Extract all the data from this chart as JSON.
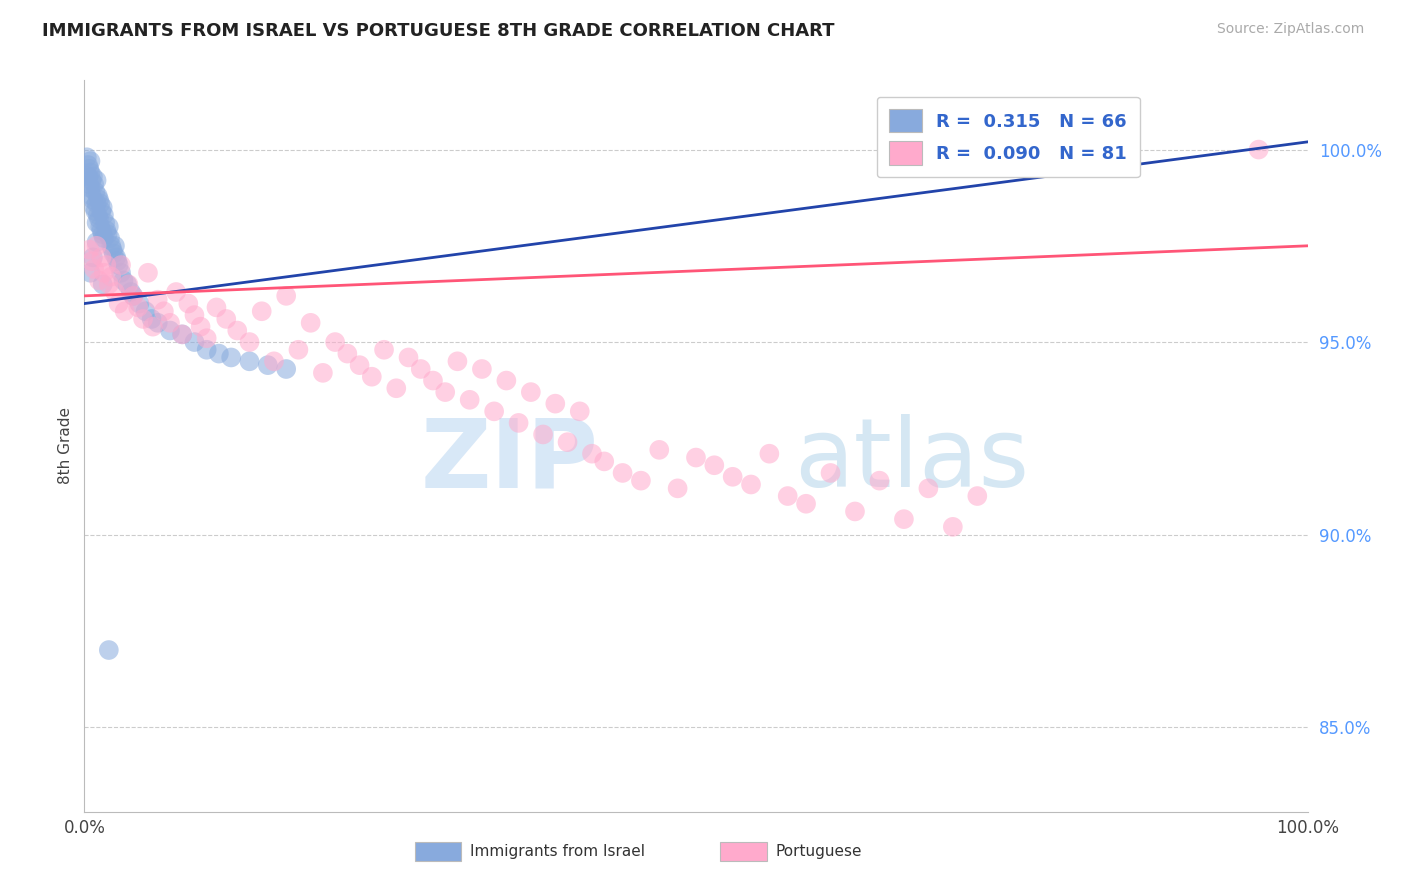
{
  "title": "IMMIGRANTS FROM ISRAEL VS PORTUGUESE 8TH GRADE CORRELATION CHART",
  "source": "Source: ZipAtlas.com",
  "ylabel": "8th Grade",
  "legend_label1": "Immigrants from Israel",
  "legend_label2": "Portuguese",
  "R1": 0.315,
  "N1": 66,
  "R2": 0.09,
  "N2": 81,
  "color_blue": "#88AADD",
  "color_pink": "#FFAACC",
  "color_line_blue": "#2244AA",
  "color_line_pink": "#FF5577",
  "ytick_labels": [
    "85.0%",
    "90.0%",
    "95.0%",
    "100.0%"
  ],
  "ytick_values": [
    0.85,
    0.9,
    0.95,
    1.0
  ],
  "xmin": 0.0,
  "xmax": 1.0,
  "ymin": 0.828,
  "ymax": 1.018,
  "watermark_zip": "ZIP",
  "watermark_atlas": "atlas",
  "blue_x": [
    0.002,
    0.003,
    0.003,
    0.004,
    0.004,
    0.005,
    0.005,
    0.005,
    0.006,
    0.006,
    0.007,
    0.007,
    0.008,
    0.008,
    0.009,
    0.009,
    0.01,
    0.01,
    0.01,
    0.011,
    0.011,
    0.012,
    0.012,
    0.013,
    0.013,
    0.014,
    0.014,
    0.015,
    0.015,
    0.016,
    0.016,
    0.017,
    0.018,
    0.019,
    0.02,
    0.021,
    0.022,
    0.023,
    0.024,
    0.025,
    0.026,
    0.027,
    0.028,
    0.03,
    0.032,
    0.035,
    0.038,
    0.04,
    0.045,
    0.05,
    0.055,
    0.06,
    0.07,
    0.08,
    0.09,
    0.1,
    0.11,
    0.12,
    0.135,
    0.15,
    0.165,
    0.005,
    0.007,
    0.01,
    0.015,
    0.02
  ],
  "blue_y": [
    0.998,
    0.996,
    0.993,
    0.995,
    0.991,
    0.997,
    0.994,
    0.99,
    0.992,
    0.988,
    0.993,
    0.987,
    0.991,
    0.985,
    0.989,
    0.984,
    0.992,
    0.986,
    0.981,
    0.988,
    0.983,
    0.987,
    0.982,
    0.986,
    0.98,
    0.984,
    0.979,
    0.985,
    0.978,
    0.983,
    0.977,
    0.981,
    0.979,
    0.978,
    0.98,
    0.977,
    0.975,
    0.974,
    0.973,
    0.975,
    0.972,
    0.971,
    0.97,
    0.968,
    0.966,
    0.965,
    0.963,
    0.962,
    0.96,
    0.958,
    0.956,
    0.955,
    0.953,
    0.952,
    0.95,
    0.948,
    0.947,
    0.946,
    0.945,
    0.944,
    0.943,
    0.968,
    0.972,
    0.976,
    0.965,
    0.87
  ],
  "pink_x": [
    0.004,
    0.006,
    0.008,
    0.01,
    0.012,
    0.014,
    0.016,
    0.018,
    0.02,
    0.022,
    0.025,
    0.028,
    0.03,
    0.033,
    0.036,
    0.04,
    0.044,
    0.048,
    0.052,
    0.056,
    0.06,
    0.065,
    0.07,
    0.075,
    0.08,
    0.085,
    0.09,
    0.095,
    0.1,
    0.108,
    0.116,
    0.125,
    0.135,
    0.145,
    0.155,
    0.165,
    0.175,
    0.185,
    0.195,
    0.205,
    0.215,
    0.225,
    0.235,
    0.245,
    0.255,
    0.265,
    0.275,
    0.285,
    0.295,
    0.305,
    0.315,
    0.325,
    0.335,
    0.345,
    0.355,
    0.365,
    0.375,
    0.385,
    0.395,
    0.405,
    0.415,
    0.425,
    0.44,
    0.455,
    0.47,
    0.485,
    0.5,
    0.515,
    0.53,
    0.545,
    0.56,
    0.575,
    0.59,
    0.61,
    0.63,
    0.65,
    0.67,
    0.69,
    0.71,
    0.73,
    0.96
  ],
  "pink_y": [
    0.974,
    0.971,
    0.969,
    0.975,
    0.966,
    0.972,
    0.968,
    0.97,
    0.965,
    0.967,
    0.963,
    0.96,
    0.97,
    0.958,
    0.965,
    0.962,
    0.959,
    0.956,
    0.968,
    0.954,
    0.961,
    0.958,
    0.955,
    0.963,
    0.952,
    0.96,
    0.957,
    0.954,
    0.951,
    0.959,
    0.956,
    0.953,
    0.95,
    0.958,
    0.945,
    0.962,
    0.948,
    0.955,
    0.942,
    0.95,
    0.947,
    0.944,
    0.941,
    0.948,
    0.938,
    0.946,
    0.943,
    0.94,
    0.937,
    0.945,
    0.935,
    0.943,
    0.932,
    0.94,
    0.929,
    0.937,
    0.926,
    0.934,
    0.924,
    0.932,
    0.921,
    0.919,
    0.916,
    0.914,
    0.922,
    0.912,
    0.92,
    0.918,
    0.915,
    0.913,
    0.921,
    0.91,
    0.908,
    0.916,
    0.906,
    0.914,
    0.904,
    0.912,
    0.902,
    0.91,
    1.0
  ]
}
